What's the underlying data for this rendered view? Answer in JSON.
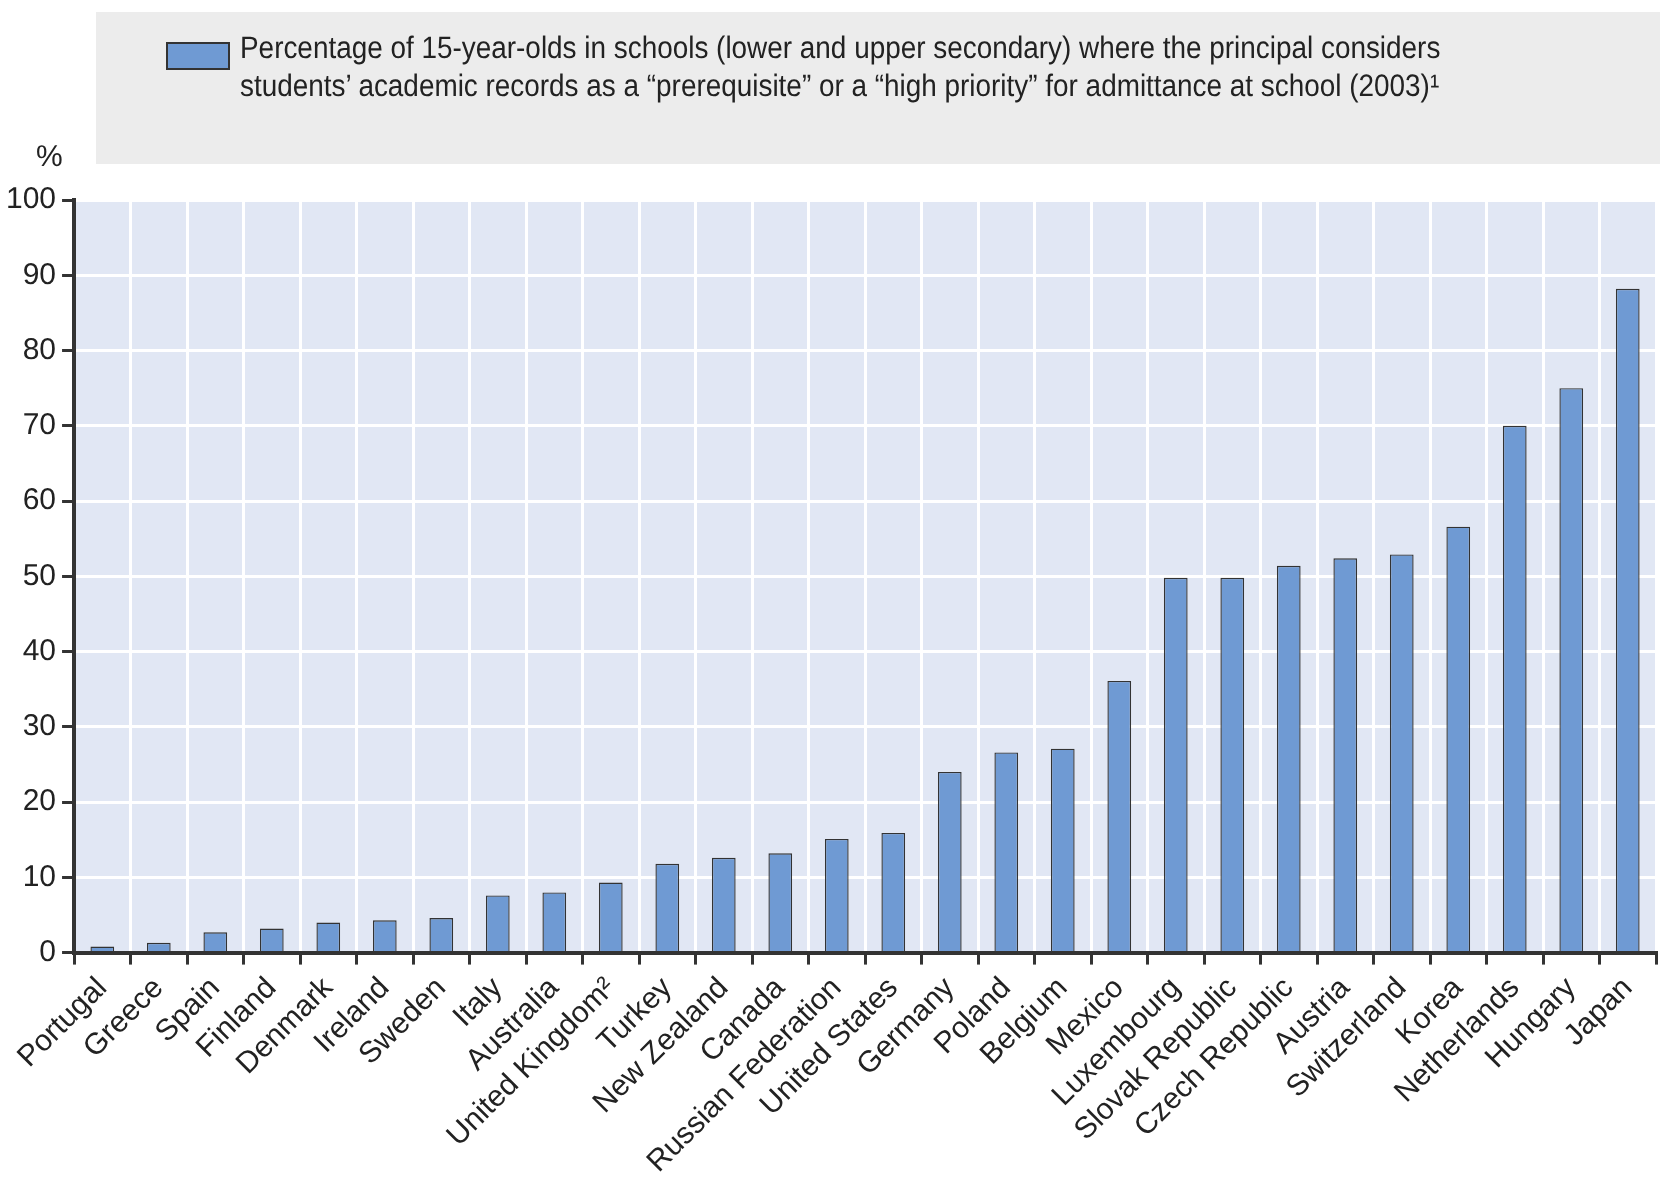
{
  "chart_data": {
    "type": "bar",
    "ylabel": "%",
    "categories": [
      "Portugal",
      "Greece",
      "Spain",
      "Finland",
      "Denmark",
      "Ireland",
      "Sweden",
      "Italy",
      "Australia",
      "United Kingdom²",
      "Turkey",
      "New Zealand",
      "Canada",
      "Russian Federation",
      "United States",
      "Germany",
      "Poland",
      "Belgium",
      "Mexico",
      "Luxembourg",
      "Slovak Republic",
      "Czech Republic",
      "Austria",
      "Switzerland",
      "Korea",
      "Netherlands",
      "Hungary",
      "Japan"
    ],
    "series": [
      {
        "name": "Percentage of 15-year-olds in schools (lower and upper secondary) where the principal considers students’ academic records as a “prerequisite” or a “high priority” for admittance at school (2003)¹",
        "color": "#6f9ad3",
        "values": [
          0.8,
          1.3,
          2.7,
          3.2,
          4.0,
          4.3,
          4.6,
          7.6,
          8.0,
          9.3,
          11.8,
          12.6,
          13.2,
          15.1,
          15.9,
          24.0,
          26.6,
          27.1,
          36.1,
          49.8,
          49.8,
          51.4,
          52.4,
          52.9,
          56.6,
          70.0,
          75.0,
          88.2
        ]
      }
    ],
    "ylim": [
      0,
      100
    ],
    "yticks": [
      0,
      10,
      20,
      30,
      40,
      50,
      60,
      70,
      80,
      90,
      100
    ],
    "grid": true,
    "legend": "top"
  }
}
